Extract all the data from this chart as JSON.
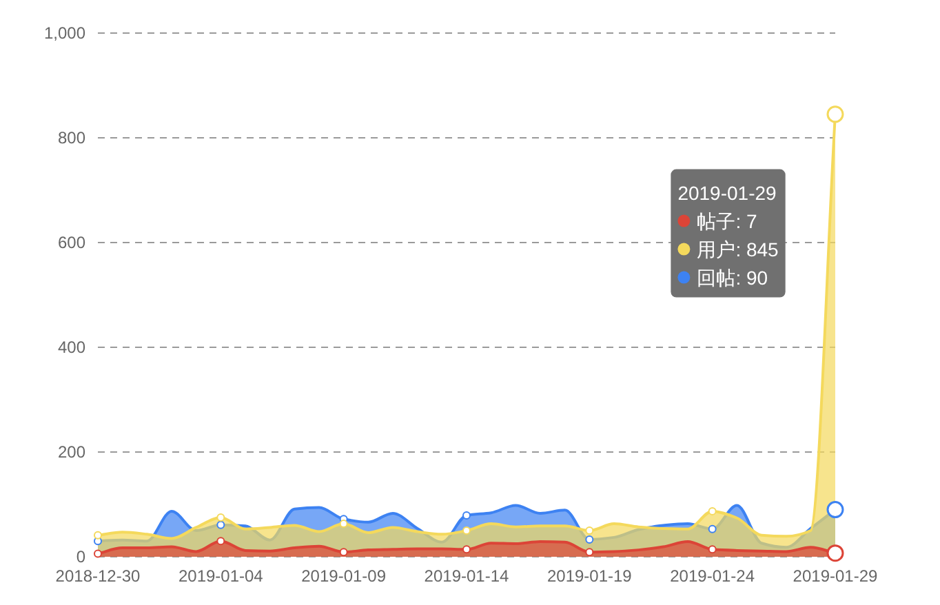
{
  "chart_data": {
    "type": "area",
    "x": [
      "2018-12-30",
      "2018-12-31",
      "2019-01-01",
      "2019-01-02",
      "2019-01-03",
      "2019-01-04",
      "2019-01-05",
      "2019-01-06",
      "2019-01-07",
      "2019-01-08",
      "2019-01-09",
      "2019-01-10",
      "2019-01-11",
      "2019-01-12",
      "2019-01-13",
      "2019-01-14",
      "2019-01-15",
      "2019-01-16",
      "2019-01-17",
      "2019-01-18",
      "2019-01-19",
      "2019-01-20",
      "2019-01-21",
      "2019-01-22",
      "2019-01-23",
      "2019-01-24",
      "2019-01-25",
      "2019-01-26",
      "2019-01-27",
      "2019-01-28",
      "2019-01-29"
    ],
    "series": [
      {
        "color": "#dc4437",
        "values": [
          6,
          17,
          17,
          19,
          10,
          30,
          12,
          11,
          17,
          20,
          9,
          13,
          14,
          15,
          15,
          14,
          26,
          25,
          29,
          28,
          9,
          10,
          13,
          19,
          29,
          14,
          12,
          11,
          10,
          18,
          7
        ]
      },
      {
        "color": "#f4d95c",
        "values": [
          41,
          47,
          43,
          35,
          56,
          75,
          53,
          56,
          60,
          48,
          63,
          46,
          56,
          48,
          43,
          50,
          63,
          57,
          59,
          59,
          50,
          63,
          57,
          54,
          53,
          87,
          74,
          41,
          39,
          50,
          845
        ]
      },
      {
        "color": "#3d82f2",
        "values": [
          30,
          32,
          30,
          87,
          50,
          61,
          59,
          32,
          91,
          94,
          72,
          66,
          83,
          54,
          28,
          79,
          84,
          98,
          83,
          89,
          33,
          37,
          52,
          60,
          63,
          53,
          98,
          26,
          18,
          54,
          90
        ]
      }
    ],
    "xlim": [
      "2018-12-30",
      "2019-01-29"
    ],
    "xticks": [
      "2018-12-30",
      "2019-01-04",
      "2019-01-09",
      "2019-01-14",
      "2019-01-19",
      "2019-01-24",
      "2019-01-29"
    ],
    "ylim": [
      0,
      1000
    ],
    "yticks": [
      0,
      200,
      400,
      600,
      800,
      {
        "value": 1000,
        "label": "1,000"
      }
    ],
    "grid": "y",
    "annotations": [
      "2019-01-29",
      "帖子: 7",
      "用户: 845",
      "回帖: 90"
    ]
  }
}
